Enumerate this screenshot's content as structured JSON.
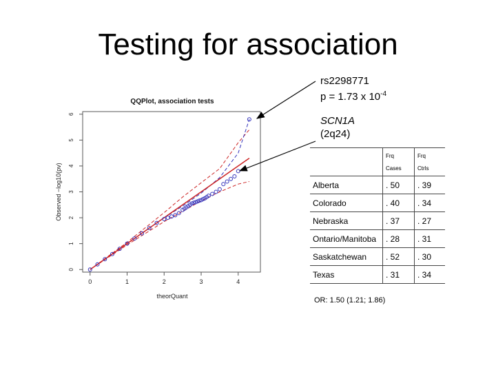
{
  "slide": {
    "title": "Testing for association",
    "snp_line1": "rs2298771",
    "snp_line2_prefix": "p = 1.73 x 10",
    "snp_line2_exp": "-4",
    "gene_name": "SCN1A",
    "gene_locus": "(2q24)",
    "odds_ratio": "OR: 1.50 (1.21; 1.86)"
  },
  "table": {
    "headers": [
      "",
      "Frq Cases",
      "Frq Ctrls"
    ],
    "rows": [
      [
        "Alberta",
        ". 50",
        ". 39"
      ],
      [
        "Colorado",
        ". 40",
        ". 34"
      ],
      [
        "Nebraska",
        ". 37",
        ". 27"
      ],
      [
        "Ontario/Manitoba",
        ". 28",
        ". 31"
      ],
      [
        "Saskatchewan",
        ". 52",
        ". 30"
      ],
      [
        "Texas",
        ". 31",
        ". 34"
      ]
    ]
  },
  "colors": {
    "points": "#3333bb",
    "bounds": "#cc2222",
    "diagonal": "#cc2222",
    "expected_curve": "#3333bb"
  },
  "chart_data": {
    "type": "scatter",
    "title": "QQPlot, association tests",
    "xlabel": "theorQuant",
    "ylabel": "Observed −log10(pv)",
    "xlim": [
      -0.2,
      4.6
    ],
    "ylim": [
      -0.1,
      6.1
    ],
    "xticks": [
      0,
      1,
      2,
      3,
      4
    ],
    "yticks": [
      0,
      1,
      2,
      3,
      4,
      5,
      6
    ],
    "grid": false,
    "series": [
      {
        "x": [
          0,
          0.2,
          0.4,
          0.6,
          0.8,
          1.0,
          1.2,
          1.4,
          1.6,
          1.8,
          2.0,
          2.1,
          2.2,
          2.3,
          2.4,
          2.5,
          2.55,
          2.6,
          2.65,
          2.7,
          2.75,
          2.8,
          2.85,
          2.9,
          2.95,
          3.0,
          3.05,
          3.1,
          3.15,
          3.2,
          3.3,
          3.4,
          3.5,
          3.6,
          3.7,
          3.8,
          3.9,
          4.0,
          4.3
        ],
        "y": [
          0,
          0.2,
          0.4,
          0.6,
          0.8,
          1.0,
          1.2,
          1.4,
          1.6,
          1.8,
          1.95,
          2.0,
          2.05,
          2.1,
          2.18,
          2.3,
          2.35,
          2.4,
          2.45,
          2.5,
          2.55,
          2.58,
          2.6,
          2.63,
          2.66,
          2.68,
          2.72,
          2.75,
          2.8,
          2.85,
          2.92,
          3.0,
          3.1,
          3.3,
          3.4,
          3.5,
          3.6,
          3.8,
          5.8
        ]
      }
    ],
    "expected_line": {
      "x": [
        0,
        4.3
      ],
      "y": [
        0,
        4.3
      ]
    },
    "expected_curve": {
      "x": [
        2.0,
        2.5,
        3.0,
        3.5,
        4.0,
        4.3
      ],
      "y": [
        2.0,
        2.45,
        2.95,
        3.55,
        4.5,
        5.8
      ]
    },
    "upper_bound": {
      "x": [
        0,
        1.0,
        2.0,
        2.5,
        3.0,
        3.5,
        4.0,
        4.3
      ],
      "y": [
        0,
        1.05,
        2.2,
        2.8,
        3.35,
        3.9,
        4.9,
        5.4
      ]
    },
    "lower_bound": {
      "x": [
        0,
        1.0,
        2.0,
        2.5,
        3.0,
        3.5,
        4.0,
        4.3
      ],
      "y": [
        0,
        0.95,
        1.85,
        2.25,
        2.65,
        3.0,
        3.3,
        3.4
      ]
    }
  }
}
